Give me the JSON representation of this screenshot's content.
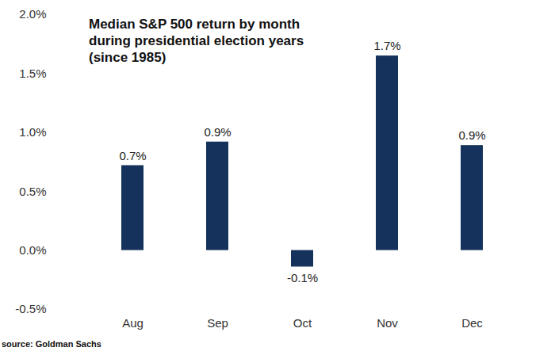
{
  "chart_data": {
    "type": "bar",
    "title": "Median S&P 500 return by month during presidential election years (since 1985)",
    "categories": [
      "Aug",
      "Sep",
      "Oct",
      "Nov",
      "Dec"
    ],
    "values": [
      0.72,
      0.92,
      -0.14,
      1.65,
      0.89
    ],
    "value_labels": [
      "0.7%",
      "0.9%",
      "-0.1%",
      "1.7%",
      "0.9%"
    ],
    "data_labels": true,
    "color": "#14325c",
    "ylim": [
      -0.5,
      2.0
    ],
    "yticks": [
      {
        "value": -0.5,
        "label": "-0.5%"
      },
      {
        "value": 0,
        "label": "0.0%"
      },
      {
        "value": 0.5,
        "label": "0.5%"
      },
      {
        "value": 1.0,
        "label": "1.0%"
      },
      {
        "value": 1.5,
        "label": "1.5%"
      },
      {
        "value": 2.0,
        "label": "2.0%"
      }
    ],
    "grid": false,
    "source": "source: Goldman Sachs"
  }
}
